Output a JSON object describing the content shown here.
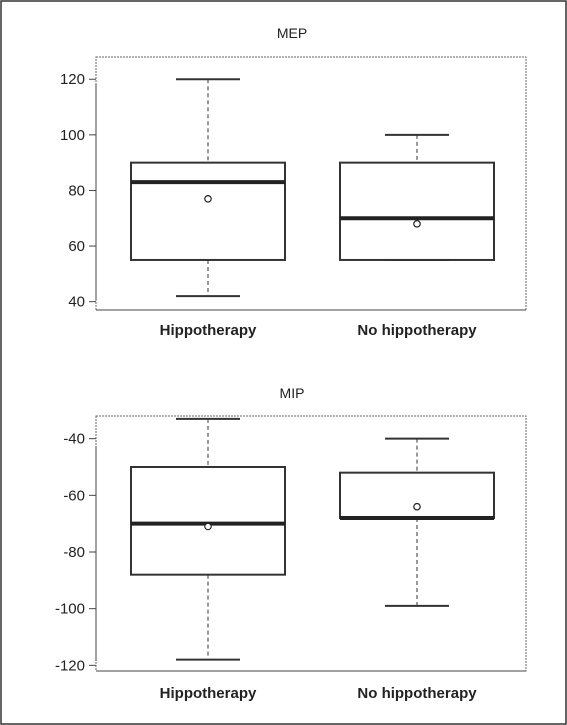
{
  "chart_data": [
    {
      "type": "boxplot",
      "title": "MEP",
      "xlabel": "",
      "ylabel": "",
      "ylim": [
        37,
        128
      ],
      "yticks": [
        40,
        60,
        80,
        100,
        120
      ],
      "ytick_labels": [
        "40",
        "60",
        "80",
        "100",
        "120"
      ],
      "categories": [
        "Hippotherapy",
        "No hippotherapy"
      ],
      "boxes": [
        {
          "whisker_low": 42,
          "q1": 55,
          "median": 83,
          "q3": 90,
          "whisker_high": 120,
          "mean": 77
        },
        {
          "whisker_low": 55,
          "q1": 55,
          "median": 70,
          "q3": 90,
          "whisker_high": 100,
          "mean": 68
        }
      ]
    },
    {
      "type": "boxplot",
      "title": "MIP",
      "xlabel": "",
      "ylabel": "",
      "ylim": [
        -122,
        -32
      ],
      "yticks": [
        -40,
        -60,
        -80,
        -100,
        -120
      ],
      "ytick_labels": [
        "-40",
        "-60",
        "-80",
        "-100",
        "-120"
      ],
      "categories": [
        "Hippotherapy",
        "No hippotherapy"
      ],
      "boxes": [
        {
          "whisker_low": -118,
          "q1": -88,
          "median": -70,
          "q3": -50,
          "whisker_high": -33,
          "mean": -71
        },
        {
          "whisker_low": -99,
          "q1": -68,
          "median": -68,
          "q3": -52,
          "whisker_high": -40,
          "mean": -64
        }
      ]
    }
  ]
}
